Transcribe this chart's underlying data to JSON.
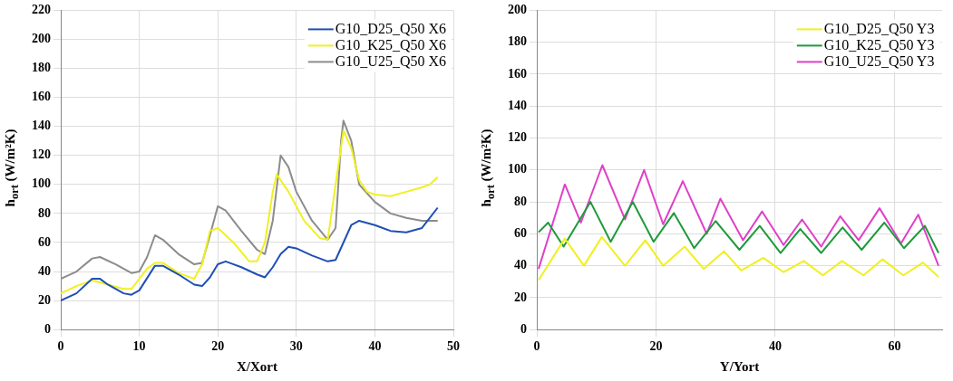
{
  "chart_data": [
    {
      "type": "line",
      "xlabel": "X/Xort",
      "ylabel": "h$_{ort}$ (W/m²K)",
      "xlim": [
        0,
        50
      ],
      "xticks": [
        0,
        10,
        20,
        30,
        40,
        50
      ],
      "ylim": [
        0,
        220
      ],
      "yticks": [
        0,
        20,
        40,
        60,
        80,
        100,
        120,
        140,
        160,
        180,
        200,
        220
      ],
      "grid": true,
      "legend": "top right",
      "marker": "none",
      "line_style": "solid",
      "series": [
        {
          "name": "G10_D25_Q50 X6",
          "color": "#1f4fb4",
          "x": [
            0,
            2,
            4,
            5,
            6,
            8,
            9,
            10,
            12,
            13,
            15,
            17,
            18,
            19,
            20,
            21,
            23,
            25,
            26,
            27,
            28,
            29,
            30,
            32,
            34,
            35,
            36,
            37,
            38,
            40,
            42,
            44,
            46,
            48
          ],
          "values": [
            20,
            25,
            35,
            35,
            31,
            25,
            24,
            27,
            44,
            44,
            38,
            31,
            30,
            36,
            45,
            47,
            43,
            38,
            36,
            43,
            52,
            57,
            56,
            51,
            47,
            48,
            60,
            72,
            75,
            72,
            68,
            67,
            70,
            84
          ]
        },
        {
          "name": "G10_K25_Q50 X6",
          "color": "#f0f020",
          "x": [
            0,
            2,
            4,
            6,
            8,
            9,
            10,
            11,
            12,
            13,
            15,
            17,
            18,
            19,
            20,
            22,
            24,
            25,
            26,
            27,
            27.5,
            29,
            31,
            33,
            34,
            35,
            36,
            37,
            38,
            39,
            40,
            42,
            44,
            46,
            47,
            48
          ],
          "values": [
            25,
            30,
            34,
            31,
            28,
            28,
            35,
            42,
            46,
            46,
            39,
            35,
            45,
            68,
            70,
            60,
            47,
            47,
            60,
            95,
            107,
            95,
            75,
            63,
            62,
            100,
            137,
            125,
            103,
            95,
            93,
            92,
            95,
            98,
            100,
            105
          ]
        },
        {
          "name": "G10_U25_Q50 X6",
          "color": "#8c8c8c",
          "x": [
            0,
            2,
            4,
            5,
            7,
            9,
            10,
            11,
            12,
            13,
            15,
            17,
            18,
            19,
            20,
            21,
            23,
            25,
            26,
            27,
            28,
            29,
            30,
            32,
            34,
            35,
            35.7,
            36,
            37,
            38,
            40,
            42,
            44,
            46,
            48
          ],
          "values": [
            35,
            40,
            49,
            50,
            45,
            39,
            40,
            50,
            65,
            62,
            52,
            45,
            46,
            65,
            85,
            82,
            68,
            55,
            52,
            75,
            120,
            112,
            95,
            75,
            62,
            70,
            130,
            144,
            130,
            100,
            88,
            80,
            77,
            75,
            75
          ]
        }
      ]
    },
    {
      "type": "line",
      "xlabel": "Y/Yort",
      "ylabel": "h$_{ort}$ (W/m²K)",
      "xlim": [
        0,
        68
      ],
      "xticks": [
        0,
        20,
        40,
        60
      ],
      "ylim": [
        0,
        200
      ],
      "yticks": [
        0,
        20,
        40,
        60,
        80,
        100,
        120,
        140,
        160,
        180,
        200
      ],
      "grid": true,
      "legend": "top right",
      "marker": "none",
      "line_style": "solid",
      "series": [
        {
          "name": "G10_D25_Q50 Y3",
          "color": "#f0f020",
          "x": [
            0.3,
            4.7,
            7.9,
            10.9,
            14.8,
            18.2,
            21.2,
            24.8,
            28,
            31.4,
            34.3,
            38,
            41.4,
            44.8,
            48,
            51.2,
            54.8,
            58,
            61.5,
            64.8,
            67.4
          ],
          "values": [
            31,
            57,
            40,
            58,
            40,
            56,
            40,
            52,
            38,
            49,
            37,
            45,
            36,
            43,
            34,
            43,
            34,
            44,
            34,
            42,
            33
          ]
        },
        {
          "name": "G10_K25_Q50 Y3",
          "color": "#1f9a3a",
          "x": [
            0.3,
            1.9,
            4.5,
            9,
            12.4,
            16.1,
            19.6,
            23,
            26.4,
            30,
            34,
            37.4,
            40.9,
            44.2,
            47.7,
            51.3,
            54.5,
            58.3,
            61.6,
            65.1,
            67.4
          ],
          "values": [
            61,
            67,
            52,
            80,
            55,
            80,
            55,
            73,
            51,
            68,
            50,
            65,
            48,
            63,
            48,
            64,
            50,
            67,
            51,
            65,
            48
          ]
        },
        {
          "name": "G10_U25_Q50 Y3",
          "color": "#e040c8",
          "x": [
            0.3,
            4.7,
            7.4,
            11,
            14.8,
            18,
            21.2,
            24.5,
            28.5,
            30.8,
            34.6,
            37.8,
            41.4,
            44.5,
            47.7,
            50.9,
            54,
            57.5,
            61.1,
            64,
            67.4
          ],
          "values": [
            38,
            91,
            67,
            103,
            69,
            100,
            66,
            93,
            60,
            82,
            56,
            74,
            53,
            69,
            52,
            71,
            56,
            76,
            54,
            72,
            40
          ]
        }
      ]
    }
  ]
}
